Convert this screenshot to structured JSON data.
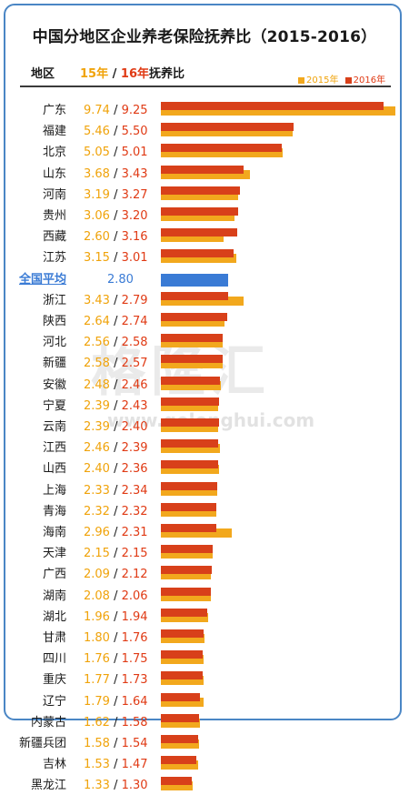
{
  "chart_data": {
    "type": "bar",
    "title": "中国分地区企业养老保险抚养比（2015-2016）",
    "header": {
      "region_label": "地区",
      "label_15": "15年",
      "label_sep": "/",
      "label_16": "16年",
      "label_rest": "抚养比"
    },
    "legend": [
      "2015年",
      "2016年"
    ],
    "legend_placement": "top-right",
    "colors": {
      "s2015": "#f2a81d",
      "s2016": "#d8401a",
      "average": "#3a7bd5"
    },
    "watermark": {
      "brand": "格隆汇",
      "url": "www.gelonghui.com"
    },
    "xlim": [
      0,
      10
    ],
    "rows": [
      {
        "region": "广东",
        "v2015": 9.74,
        "v2016": 9.25,
        "d2015": "9.74",
        "d2016": "9.25"
      },
      {
        "region": "福建",
        "v2015": 5.46,
        "v2016": 5.5,
        "d2015": "5.46",
        "d2016": "5.50"
      },
      {
        "region": "北京",
        "v2015": 5.05,
        "v2016": 5.01,
        "d2015": "5.05",
        "d2016": "5.01"
      },
      {
        "region": "山东",
        "v2015": 3.68,
        "v2016": 3.43,
        "d2015": "3.68",
        "d2016": "3.43"
      },
      {
        "region": "河南",
        "v2015": 3.19,
        "v2016": 3.27,
        "d2015": "3.19",
        "d2016": "3.27"
      },
      {
        "region": "贵州",
        "v2015": 3.06,
        "v2016": 3.2,
        "d2015": "3.06",
        "d2016": "3.20"
      },
      {
        "region": "西藏",
        "v2015": 2.6,
        "v2016": 3.16,
        "d2015": "2.60",
        "d2016": "3.16"
      },
      {
        "region": "江苏",
        "v2015": 3.15,
        "v2016": 3.01,
        "d2015": "3.15",
        "d2016": "3.01"
      },
      {
        "region": "全国平均",
        "average": true,
        "value": 2.8,
        "display": "2.80"
      },
      {
        "region": "浙江",
        "v2015": 3.43,
        "v2016": 2.79,
        "d2015": "3.43",
        "d2016": "2.79"
      },
      {
        "region": "陕西",
        "v2015": 2.64,
        "v2016": 2.74,
        "d2015": "2.64",
        "d2016": "2.74"
      },
      {
        "region": "河北",
        "v2015": 2.56,
        "v2016": 2.58,
        "d2015": "2.56",
        "d2016": "2.58"
      },
      {
        "region": "新疆",
        "v2015": 2.58,
        "v2016": 2.57,
        "d2015": "2.58",
        "d2016": "2.57"
      },
      {
        "region": "安徽",
        "v2015": 2.48,
        "v2016": 2.46,
        "d2015": "2.48",
        "d2016": "2.46"
      },
      {
        "region": "宁夏",
        "v2015": 2.39,
        "v2016": 2.43,
        "d2015": "2.39",
        "d2016": "2.43"
      },
      {
        "region": "云南",
        "v2015": 2.39,
        "v2016": 2.4,
        "d2015": "2.39",
        "d2016": "2.40"
      },
      {
        "region": "江西",
        "v2015": 2.46,
        "v2016": 2.39,
        "d2015": "2.46",
        "d2016": "2.39"
      },
      {
        "region": "山西",
        "v2015": 2.4,
        "v2016": 2.36,
        "d2015": "2.40",
        "d2016": "2.36"
      },
      {
        "region": "上海",
        "v2015": 2.33,
        "v2016": 2.34,
        "d2015": "2.33",
        "d2016": "2.34"
      },
      {
        "region": "青海",
        "v2015": 2.32,
        "v2016": 2.32,
        "d2015": "2.32",
        "d2016": "2.32"
      },
      {
        "region": "海南",
        "v2015": 2.96,
        "v2016": 2.31,
        "d2015": "2.96",
        "d2016": "2.31"
      },
      {
        "region": "天津",
        "v2015": 2.15,
        "v2016": 2.15,
        "d2015": "2.15",
        "d2016": "2.15"
      },
      {
        "region": "广西",
        "v2015": 2.09,
        "v2016": 2.12,
        "d2015": "2.09",
        "d2016": "2.12"
      },
      {
        "region": "湖南",
        "v2015": 2.08,
        "v2016": 2.06,
        "d2015": "2.08",
        "d2016": "2.06"
      },
      {
        "region": "湖北",
        "v2015": 1.96,
        "v2016": 1.94,
        "d2015": "1.96",
        "d2016": "1.94"
      },
      {
        "region": "甘肃",
        "v2015": 1.8,
        "v2016": 1.76,
        "d2015": "1.80",
        "d2016": "1.76"
      },
      {
        "region": "四川",
        "v2015": 1.76,
        "v2016": 1.75,
        "d2015": "1.76",
        "d2016": "1.75"
      },
      {
        "region": "重庆",
        "v2015": 1.77,
        "v2016": 1.73,
        "d2015": "1.77",
        "d2016": "1.73"
      },
      {
        "region": "辽宁",
        "v2015": 1.79,
        "v2016": 1.64,
        "d2015": "1.79",
        "d2016": "1.64"
      },
      {
        "region": "内蒙古",
        "v2015": 1.62,
        "v2016": 1.58,
        "d2015": "1.62",
        "d2016": "1.58"
      },
      {
        "region": "新疆兵团",
        "v2015": 1.58,
        "v2016": 1.54,
        "d2015": "1.58",
        "d2016": "1.54"
      },
      {
        "region": "吉林",
        "v2015": 1.53,
        "v2016": 1.47,
        "d2015": "1.53",
        "d2016": "1.47"
      },
      {
        "region": "黑龙江",
        "v2015": 1.33,
        "v2016": 1.3,
        "d2015": "1.33",
        "d2016": "1.30"
      }
    ]
  }
}
